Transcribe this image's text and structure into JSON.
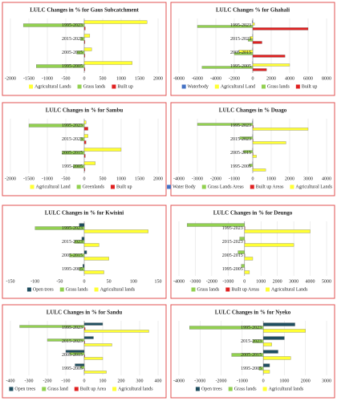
{
  "chart_data": [
    {
      "type": "bar",
      "orientation": "horizontal",
      "title": "LULC Changes in % for Gaus Subcatchment",
      "categories": [
        "1995-2023",
        "2015-2023",
        "2005-2015",
        "1995-2005"
      ],
      "series": [
        {
          "name": "Agricultural Lands",
          "color": "#ffff33",
          "values": [
            1700,
            150,
            200,
            1300
          ]
        },
        {
          "name": "Grass lands",
          "color": "#92d050",
          "values": [
            -1650,
            -100,
            -200,
            -1300
          ]
        },
        {
          "name": "Built up",
          "color": "#e02020",
          "values": [
            30,
            20,
            20,
            20
          ]
        }
      ],
      "xlim": [
        -2000,
        2000
      ],
      "xticks": [
        -2000,
        -1500,
        -1000,
        -500,
        0,
        500,
        1000,
        1500,
        2000
      ],
      "grid": true,
      "legend": "bottom"
    },
    {
      "type": "bar",
      "orientation": "horizontal",
      "title": "LULC Changes % for Ghahali",
      "categories": [
        "1995-2023",
        "2015-2023",
        "2005-2015",
        "1995-2005"
      ],
      "series": [
        {
          "name": "Waterbody",
          "color": "#4472c4",
          "values": [
            -50,
            -20,
            -20,
            -30
          ]
        },
        {
          "name": "Agricultural Land",
          "color": "#ffff33",
          "values": [
            200,
            -300,
            -1500,
            4000
          ]
        },
        {
          "name": "Grass lands",
          "color": "#92d050",
          "values": [
            -6000,
            -500,
            -2000,
            -5500
          ]
        },
        {
          "name": "Built up",
          "color": "#e02020",
          "values": [
            6000,
            1000,
            3500,
            1500
          ]
        }
      ],
      "xlim": [
        -8000,
        8000
      ],
      "xticks": [
        -8000,
        -6000,
        -4000,
        -2000,
        0,
        2000,
        4000,
        6000,
        8000
      ],
      "grid": true,
      "legend": "bottom"
    },
    {
      "type": "bar",
      "orientation": "horizontal",
      "title": "LULC Changes in % for Sambu",
      "categories": [
        "1995-2023",
        "2015-2023",
        "2005-2015",
        "1995-2005"
      ],
      "series": [
        {
          "name": "Agricultural Land",
          "color": "#ffff33",
          "values": [
            50,
            100,
            1000,
            300
          ]
        },
        {
          "name": "Greenlands",
          "color": "#92d050",
          "values": [
            -1500,
            -100,
            -600,
            -300
          ]
        },
        {
          "name": "Built up",
          "color": "#e02020",
          "values": [
            100,
            50,
            30,
            20
          ]
        }
      ],
      "xlim": [
        -2000,
        2000
      ],
      "xticks": [
        -2000,
        -1500,
        -1000,
        -500,
        0,
        500,
        1000,
        1500,
        2000
      ],
      "grid": true,
      "legend": "bottom"
    },
    {
      "type": "bar",
      "orientation": "horizontal",
      "title": "LULC Changes in % Duago",
      "categories": [
        "1995-2023",
        "2015-2023",
        "2005-2015",
        "1995-2005"
      ],
      "series": [
        {
          "name": "Water Body",
          "color": "#4472c4",
          "values": [
            -20,
            -10,
            -10,
            -10
          ]
        },
        {
          "name": "Grass Lands Areas",
          "color": "#92d050",
          "values": [
            -3000,
            -700,
            -500,
            -200
          ]
        },
        {
          "name": "Built up Areas",
          "color": "#e02020",
          "values": [
            30,
            20,
            20,
            10
          ]
        },
        {
          "name": "Agricultural Lands",
          "color": "#ffff33",
          "values": [
            3000,
            1800,
            200,
            700
          ]
        }
      ],
      "xlim": [
        -4000,
        4000
      ],
      "xticks": [
        -4000,
        -3000,
        -2000,
        -1000,
        0,
        1000,
        2000,
        3000,
        4000
      ],
      "grid": true,
      "legend": "bottom"
    },
    {
      "type": "bar",
      "orientation": "horizontal",
      "title": "LULC Changes in % for Kwisini",
      "categories": [
        "1995-2023",
        "2015-2023",
        "2005-2015",
        "1995-2005"
      ],
      "series": [
        {
          "name": "Open trees",
          "color": "#1f4e5f",
          "values": [
            -10,
            -5,
            5,
            -3
          ]
        },
        {
          "name": "Grass lands",
          "color": "#92d050",
          "values": [
            -100,
            -20,
            -30,
            -10
          ]
        },
        {
          "name": "Agricultural lands",
          "color": "#ffff33",
          "values": [
            130,
            30,
            50,
            40
          ]
        }
      ],
      "xlim": [
        -150,
        150
      ],
      "xticks": [
        -150,
        -100,
        -50,
        0,
        50,
        100,
        150
      ],
      "grid": false,
      "legend": "bottom"
    },
    {
      "type": "bar",
      "orientation": "horizontal",
      "title": "LULC Changes in % for Deungo",
      "categories": [
        "1995-2023",
        "2015-2023",
        "2005-2015",
        "1995-2005"
      ],
      "series": [
        {
          "name": "Grass lands",
          "color": "#92d050",
          "values": [
            -3500,
            -300,
            -400,
            -200
          ]
        },
        {
          "name": "Built up Areas",
          "color": "#e02020",
          "values": [
            30,
            20,
            20,
            10
          ]
        },
        {
          "name": "Agricultural Lands",
          "color": "#ffff33",
          "values": [
            4000,
            3000,
            500,
            300
          ]
        }
      ],
      "xlim": [
        -4000,
        5000
      ],
      "xticks": [
        -4000,
        -3000,
        -2000,
        -1000,
        0,
        1000,
        2000,
        3000,
        4000,
        5000
      ],
      "grid": true,
      "legend": "bottom"
    },
    {
      "type": "bar",
      "orientation": "horizontal",
      "title": "LULC Changes in % for Sandu",
      "categories": [
        "1995-2023",
        "2015-2023",
        "2005-2015",
        "1995-2005"
      ],
      "series": [
        {
          "name": "Open trees",
          "color": "#1f4e5f",
          "values": [
            100,
            50,
            -100,
            -50
          ]
        },
        {
          "name": "Grass land",
          "color": "#92d050",
          "values": [
            -350,
            -200,
            -80,
            -20
          ]
        },
        {
          "name": "Built up Area",
          "color": "#e02020",
          "values": [
            5,
            3,
            3,
            2
          ]
        },
        {
          "name": "Agricultural lands",
          "color": "#ffff33",
          "values": [
            350,
            150,
            100,
            120
          ]
        }
      ],
      "xlim": [
        -400,
        400
      ],
      "xticks": [
        -400,
        -300,
        -200,
        -100,
        0,
        100,
        200,
        300,
        400
      ],
      "grid": true,
      "legend": "bottom"
    },
    {
      "type": "bar",
      "orientation": "horizontal",
      "title": "LULC Changes in % for Nyeko",
      "categories": [
        "1995-2023",
        "2015-2023",
        "2005-2015",
        "1995-2005"
      ],
      "series": [
        {
          "name": "Open trees",
          "color": "#1f4e5f",
          "values": [
            1500,
            1000,
            700,
            300
          ]
        },
        {
          "name": "Grass lands",
          "color": "#92d050",
          "values": [
            -3500,
            -500,
            -1500,
            -200
          ]
        },
        {
          "name": "Agricultural lands",
          "color": "#ffff33",
          "values": [
            2000,
            400,
            1300,
            300
          ]
        }
      ],
      "xlim": [
        -4000,
        3000
      ],
      "xticks": [
        -4000,
        -3000,
        -2000,
        -1000,
        0,
        1000,
        2000,
        3000
      ],
      "grid": true,
      "legend": "bottom"
    }
  ]
}
